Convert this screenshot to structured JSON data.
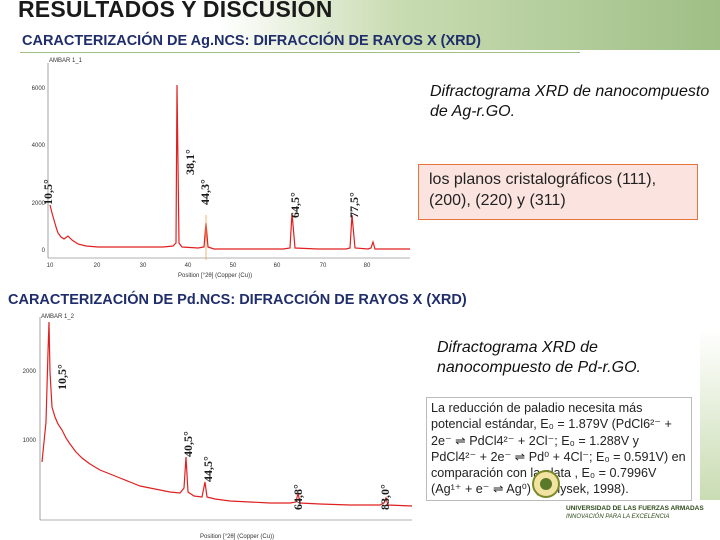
{
  "title": "RESULTADOS Y DISCUSIÓN",
  "section_ag": {
    "heading": "CARACTERIZACIÓN DE Ag.NCS: DIFRACCIÓN DE RAYOS X (XRD)",
    "description": "Difractograma XRD de nanocompuesto de Ag-r.GO.",
    "note": "los planos cristalográficos (111), (200), (220) y (311)",
    "plot": {
      "sample": "AMBAR 1_1",
      "y_ticks": [
        "6000",
        "4000",
        "2000",
        "0"
      ],
      "x_ticks": [
        "10",
        "20",
        "30",
        "40",
        "50",
        "60",
        "70",
        "80"
      ],
      "x_label": "Position [°2θ] (Copper (Cu))",
      "peaks": [
        "10,5°",
        "38,1°",
        "44,3°",
        "64,5°",
        "77,5°"
      ]
    }
  },
  "section_pd": {
    "heading": "CARACTERIZACIÓN DE Pd.NCS: DIFRACCIÓN DE RAYOS X (XRD)",
    "description": "Difractograma XRD de nanocompuesto de Pd-r.GO.",
    "note": "La reducción de paladio necesita más potencial estándar, E₀ = 1.879V (PdCl6²⁻ + 2e⁻ ⇌ PdCl4²⁻ + 2Cl⁻; E₀ = 1.288V y PdCl4²⁻ + 2e⁻ ⇌ Pd⁰ + 4Cl⁻; E₀ = 0.591V) en comparación con la plata , E₀ = 0.7996V (Ag¹⁺ + e⁻ ⇌ Ag⁰) (Vanysek, 1998).",
    "plot": {
      "sample": "AMBAR 1_2",
      "y_ticks": [
        "2000",
        "1000"
      ],
      "x_label": "Position [°2θ] (Copper (Cu))",
      "peaks": [
        "10,5°",
        "40,5°",
        "44,5°",
        "64,8°",
        "83,0°"
      ]
    }
  },
  "logo": {
    "line1": "UNIVERSIDAD DE LAS FUERZAS ARMADAS",
    "line2": "INNOVACIÓN PARA LA EXCELENCIA"
  }
}
